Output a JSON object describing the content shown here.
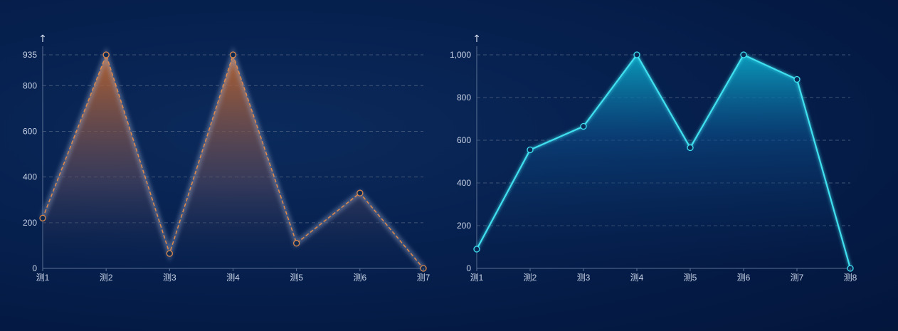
{
  "chart_data": [
    {
      "type": "area",
      "y_axis_symbol": "↑",
      "categories": [
        "测1",
        "测2",
        "测3",
        "测4",
        "测5",
        "测6",
        "测7"
      ],
      "values": [
        220,
        935,
        65,
        935,
        110,
        330,
        0
      ],
      "ylim": [
        0,
        935
      ],
      "yticks": [
        "0",
        "200",
        "400",
        "600",
        "800",
        "935"
      ],
      "line_style": "dashed",
      "grid": true,
      "colors": {
        "line": "#e0894a",
        "marker": "#a85a2e",
        "fill_top": "#c2672e",
        "fill_bottom": "#0b2452"
      }
    },
    {
      "type": "area",
      "y_axis_symbol": "↑",
      "categories": [
        "测1",
        "测2",
        "测3",
        "测4",
        "测5",
        "测6",
        "测7",
        "测8"
      ],
      "values": [
        90,
        555,
        665,
        1000,
        565,
        1000,
        885,
        0
      ],
      "ylim": [
        0,
        1000
      ],
      "yticks": [
        "0",
        "200",
        "400",
        "600",
        "800",
        "1,000"
      ],
      "line_style": "solid",
      "grid": true,
      "colors": {
        "line": "#3fe0f0",
        "marker": "#1a9fd0",
        "fill_top": "#0aa0c0",
        "fill_bottom": "#081c48"
      }
    }
  ]
}
